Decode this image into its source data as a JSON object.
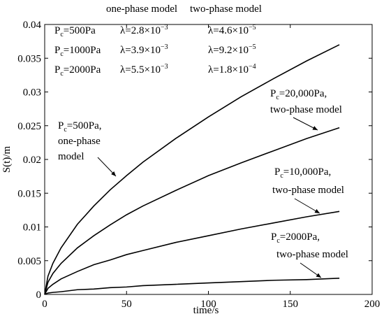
{
  "chart_data": {
    "type": "line",
    "xlabel": "time/s",
    "ylabel": "S(t)/m",
    "x": [
      0,
      2,
      5,
      10,
      20,
      30,
      40,
      50,
      60,
      80,
      100,
      120,
      140,
      160,
      180
    ],
    "series": [
      {
        "color": "#000000",
        "values": [
          0,
          0.0027,
          0.0046,
          0.0069,
          0.0104,
          0.0131,
          0.0155,
          0.0176,
          0.0196,
          0.0231,
          0.0263,
          0.0293,
          0.032,
          0.0346,
          0.037
        ]
      },
      {
        "color": "#000000",
        "values": [
          0,
          0.0018,
          0.0031,
          0.0046,
          0.0069,
          0.0087,
          0.0103,
          0.0118,
          0.0131,
          0.0154,
          0.0176,
          0.0195,
          0.0213,
          0.0231,
          0.0247
        ]
      },
      {
        "color": "#000000",
        "values": [
          0,
          0.0009,
          0.0015,
          0.0023,
          0.0034,
          0.0044,
          0.0051,
          0.0059,
          0.0065,
          0.0077,
          0.0087,
          0.0097,
          0.0106,
          0.0115,
          0.0123
        ]
      },
      {
        "color": "#000000",
        "values": [
          0,
          0.0002,
          0.0003,
          0.0004,
          0.0007,
          0.0008,
          0.001,
          0.0011,
          0.0013,
          0.0015,
          0.0017,
          0.0019,
          0.0021,
          0.0022,
          0.0024
        ]
      }
    ],
    "xlim": [
      0,
      200
    ],
    "xticks": [
      0,
      50,
      100,
      150,
      200
    ],
    "ylim": [
      0,
      0.04
    ],
    "yticks": [
      0,
      0.005,
      0.01,
      0.015,
      0.02,
      0.025,
      0.03,
      0.035,
      0.04
    ],
    "table": {
      "header": [
        "one-phase model",
        "two-phase model"
      ],
      "rows": [
        [
          {
            "main": "P",
            "sub": "c",
            "after": "=500Pa"
          },
          {
            "main": "λ=2.8×10",
            "sup": "−3"
          },
          {
            "main": "λ=4.6×10",
            "sup": "−5"
          }
        ],
        [
          {
            "main": "P",
            "sub": "c",
            "after": "=1000Pa"
          },
          {
            "main": "λ=3.9×10",
            "sup": "−3"
          },
          {
            "main": "λ=9.2×10",
            "sup": "−5"
          }
        ],
        [
          {
            "main": "P",
            "sub": "c",
            "after": "=2000Pa"
          },
          {
            "main": "λ=5.5×10",
            "sup": "−3"
          },
          {
            "main": "λ=1.8×10",
            "sup": "−4"
          }
        ]
      ]
    },
    "annotations": [
      {
        "lines": [
          {
            "main": "P",
            "sub": "c",
            "after": "=500Pa,"
          },
          {
            "main": "one-phase"
          },
          {
            "main": "model"
          }
        ]
      },
      {
        "lines": [
          {
            "main": "P",
            "sub": "c",
            "after": "=20,000Pa,"
          },
          {
            "main": "two-phase model"
          }
        ]
      },
      {
        "lines": [
          {
            "main": "P",
            "sub": "c",
            "after": "=10,000Pa,"
          },
          {
            "main": "two-phase model"
          }
        ]
      },
      {
        "lines": [
          {
            "main": "P",
            "sub": "c",
            "after": "=2000Pa,"
          },
          {
            "main": "two-phase model"
          }
        ]
      }
    ]
  }
}
